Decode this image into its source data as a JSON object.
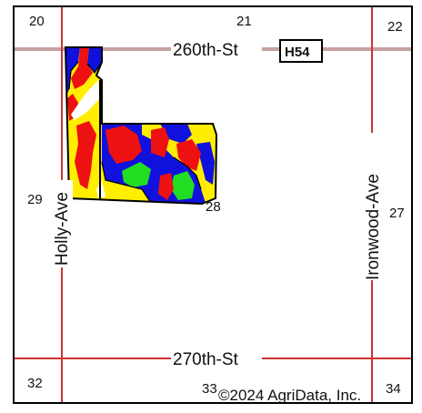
{
  "map": {
    "sections": [
      "20",
      "21",
      "22",
      "29",
      "28",
      "27",
      "32",
      "33",
      "34"
    ],
    "roads": {
      "north": "260th-St",
      "south": "270th-St",
      "west": "Holly-Ave",
      "east": "Ironwood-Ave"
    },
    "highway_shield": "H54",
    "copyright": "©2024 AgriData, Inc.",
    "colors": {
      "road": "#cc3333",
      "highway": "#c8a0a0",
      "zone_red": "#ee1111",
      "zone_yellow": "#ffee00",
      "zone_blue": "#1111dd",
      "zone_green": "#22dd22"
    }
  }
}
